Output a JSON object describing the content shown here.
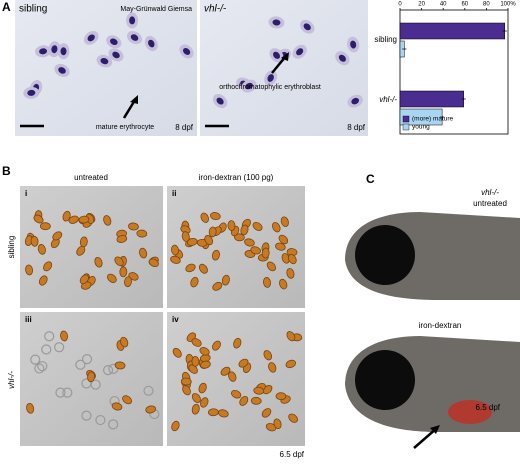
{
  "panels": {
    "A": {
      "label": "A",
      "images": [
        {
          "label": "sibling",
          "stain": "May-Grünwald Giemsa",
          "annotation": "mature erythrocyte",
          "age": "8 dpf"
        },
        {
          "label": "vhl-/-",
          "annotation": "orthochromatophylic erythroblast",
          "age": "8 dpf"
        }
      ]
    },
    "B": {
      "label": "B",
      "columns": [
        "untreated",
        "iron-dextran (100 pg)"
      ],
      "rows": [
        "sibling",
        "vhl-/-"
      ],
      "images": [
        "i",
        "ii",
        "iii",
        "iv"
      ],
      "age": "6.5 dpf"
    },
    "C": {
      "label": "C",
      "genotype": "vhl-/-",
      "conditions": [
        "untreated",
        "iron-dextran"
      ],
      "age": "6.5 dpf"
    }
  },
  "chart_data": {
    "type": "bar",
    "orientation": "horizontal",
    "categories": [
      "sibling",
      "vhl-/-"
    ],
    "series": [
      {
        "name": "(more) mature",
        "color": "#4b2d91",
        "values": [
          97,
          59
        ],
        "errors": [
          2,
          2
        ]
      },
      {
        "name": "young",
        "color": "#a9d5f2",
        "values": [
          4,
          39
        ],
        "errors": [
          2,
          2
        ]
      }
    ],
    "xlim": [
      0,
      100
    ],
    "xticks": [
      0,
      20,
      40,
      60,
      80,
      {
        "value": 100,
        "label": "100%"
      }
    ]
  }
}
